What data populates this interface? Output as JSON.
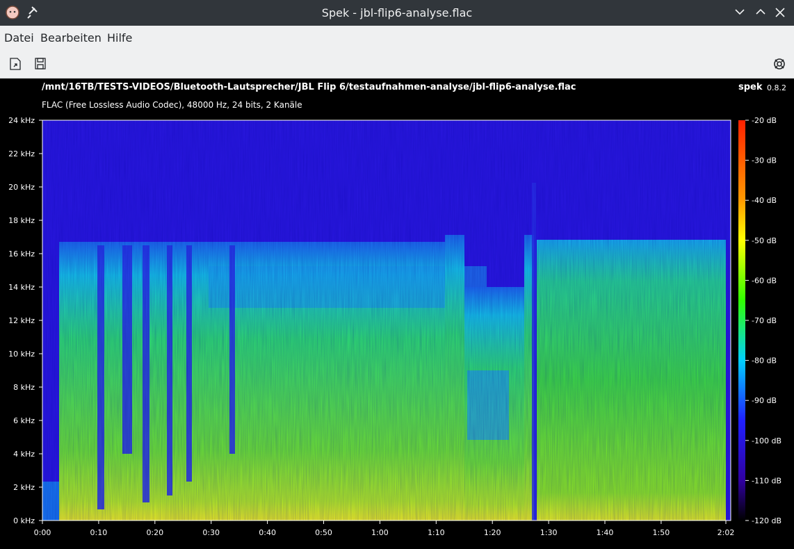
{
  "window": {
    "title": "Spek - jbl-flip6-analyse.flac"
  },
  "menu": [
    "Datei",
    "Bearbeiten",
    "Hilfe"
  ],
  "header": {
    "path": "/mnt/16TB/TESTS-VIDEOS/Bluetooth-Lautsprecher/JBL Flip 6/testaufnahmen-analyse/jbl-flip6-analyse.flac",
    "app": "spek",
    "version": "0.8.2",
    "info": "FLAC (Free Lossless Audio Codec), 48000 Hz, 24 bits, 2 Kanäle"
  },
  "frequency_labels": [
    "24 kHz",
    "22 kHz",
    "20 kHz",
    "18 kHz",
    "16 kHz",
    "14 kHz",
    "12 kHz",
    "10 kHz",
    "8 kHz",
    "6 kHz",
    "4 kHz",
    "2 kHz",
    "0 kHz"
  ],
  "time_labels": [
    "0:00",
    "0:10",
    "0:20",
    "0:30",
    "0:40",
    "0:50",
    "1:00",
    "1:10",
    "1:20",
    "1:30",
    "1:40",
    "1:50",
    "2:02"
  ],
  "level_labels": [
    "-20 dB",
    "-30 dB",
    "-40 dB",
    "-50 dB",
    "-60 dB",
    "-70 dB",
    "-80 dB",
    "-90 dB",
    "-100 dB",
    "-110 dB",
    "-120 dB"
  ]
}
